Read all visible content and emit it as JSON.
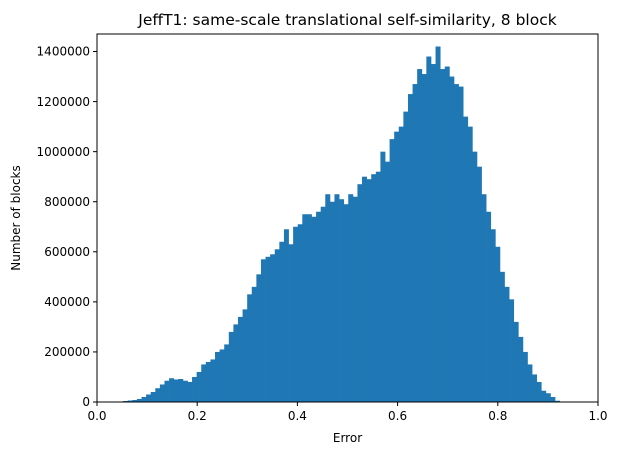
{
  "chart_data": {
    "type": "bar",
    "title": "JeffT1: same-scale translational self-similarity, 8 block",
    "xlabel": "Error",
    "ylabel": "Number of blocks",
    "xlim": [
      0.0,
      1.0
    ],
    "ylim": [
      0,
      1470000
    ],
    "grid": false,
    "bar_color": "#1f77b4",
    "x_ticks": [
      {
        "value": 0.0,
        "label": "0.0"
      },
      {
        "value": 0.2,
        "label": "0.2"
      },
      {
        "value": 0.4,
        "label": "0.4"
      },
      {
        "value": 0.6,
        "label": "0.6"
      },
      {
        "value": 0.8,
        "label": "0.8"
      },
      {
        "value": 1.0,
        "label": "1.0"
      }
    ],
    "y_ticks": [
      {
        "value": 0,
        "label": "0"
      },
      {
        "value": 200000,
        "label": "200000"
      },
      {
        "value": 400000,
        "label": "400000"
      },
      {
        "value": 600000,
        "label": "600000"
      },
      {
        "value": 800000,
        "label": "800000"
      },
      {
        "value": 1000000,
        "label": "1000000"
      },
      {
        "value": 1200000,
        "label": "1200000"
      },
      {
        "value": 1400000,
        "label": "1400000"
      }
    ],
    "bin_edges_start": 0.043,
    "bin_width": 0.00917,
    "values": [
      2000,
      4000,
      6000,
      8000,
      12000,
      20000,
      30000,
      40000,
      55000,
      70000,
      85000,
      95000,
      90000,
      92000,
      85000,
      80000,
      100000,
      120000,
      150000,
      160000,
      170000,
      200000,
      210000,
      230000,
      280000,
      310000,
      340000,
      370000,
      430000,
      460000,
      510000,
      570000,
      580000,
      590000,
      610000,
      640000,
      690000,
      630000,
      700000,
      710000,
      750000,
      750000,
      740000,
      760000,
      780000,
      830000,
      800000,
      830000,
      810000,
      790000,
      830000,
      820000,
      870000,
      900000,
      890000,
      910000,
      920000,
      1000000,
      960000,
      1050000,
      1080000,
      1100000,
      1160000,
      1230000,
      1270000,
      1330000,
      1310000,
      1380000,
      1350000,
      1420000,
      1330000,
      1340000,
      1300000,
      1270000,
      1260000,
      1140000,
      1100000,
      1000000,
      940000,
      830000,
      760000,
      690000,
      620000,
      520000,
      460000,
      410000,
      320000,
      260000,
      200000,
      150000,
      110000,
      80000,
      45000,
      35000,
      20000,
      5000
    ]
  }
}
